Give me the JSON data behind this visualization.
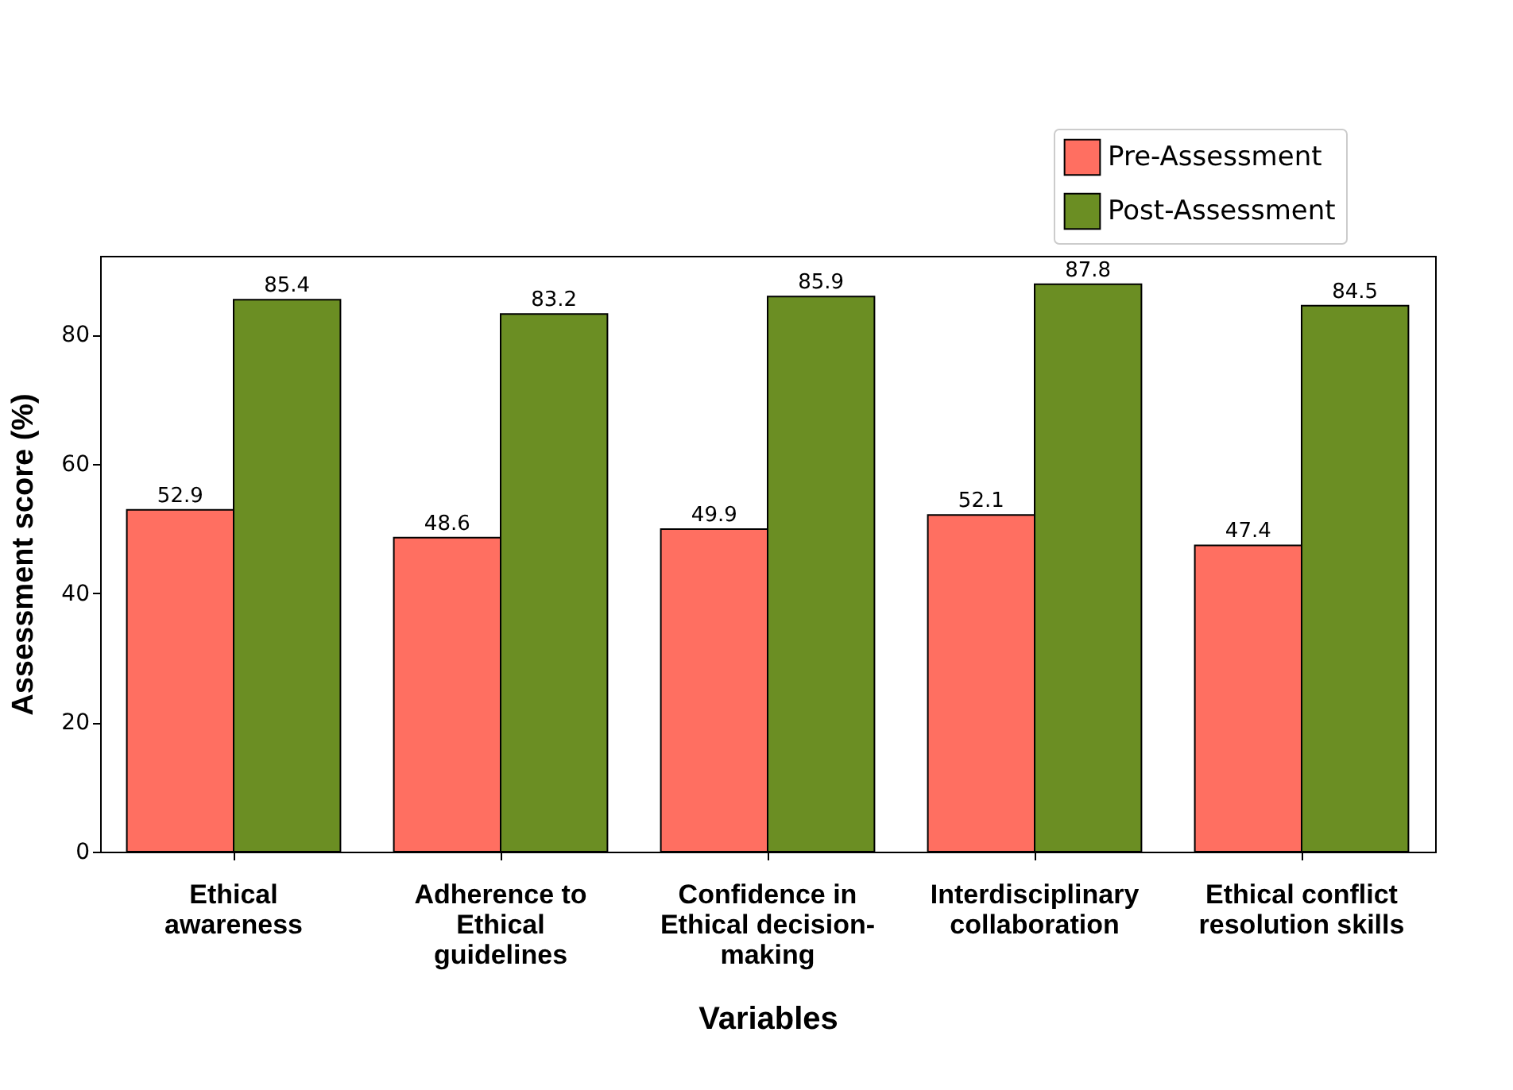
{
  "chart_data": {
    "type": "bar",
    "xlabel": "Variables",
    "ylabel": "Assessment  score (%)",
    "categories": [
      "Ethical\nawareness",
      "Adherence to\nEthical\nguidelines",
      "Confidence in\nEthical decision-\nmaking",
      "Interdisciplinary\ncollaboration",
      "Ethical conflict\nresolution skills"
    ],
    "series": [
      {
        "name": "Pre-Assessment",
        "color": "#ff6f61",
        "values": [
          52.9,
          48.6,
          49.9,
          52.1,
          47.4
        ]
      },
      {
        "name": "Post-Assessment",
        "color": "#6b8e23",
        "values": [
          85.4,
          83.2,
          85.9,
          87.8,
          84.5
        ]
      }
    ],
    "ylim": [
      0,
      92.2
    ],
    "yticks": [
      0,
      20,
      40,
      60,
      80
    ],
    "data_labels": true,
    "legend": "top right",
    "grid": false
  }
}
